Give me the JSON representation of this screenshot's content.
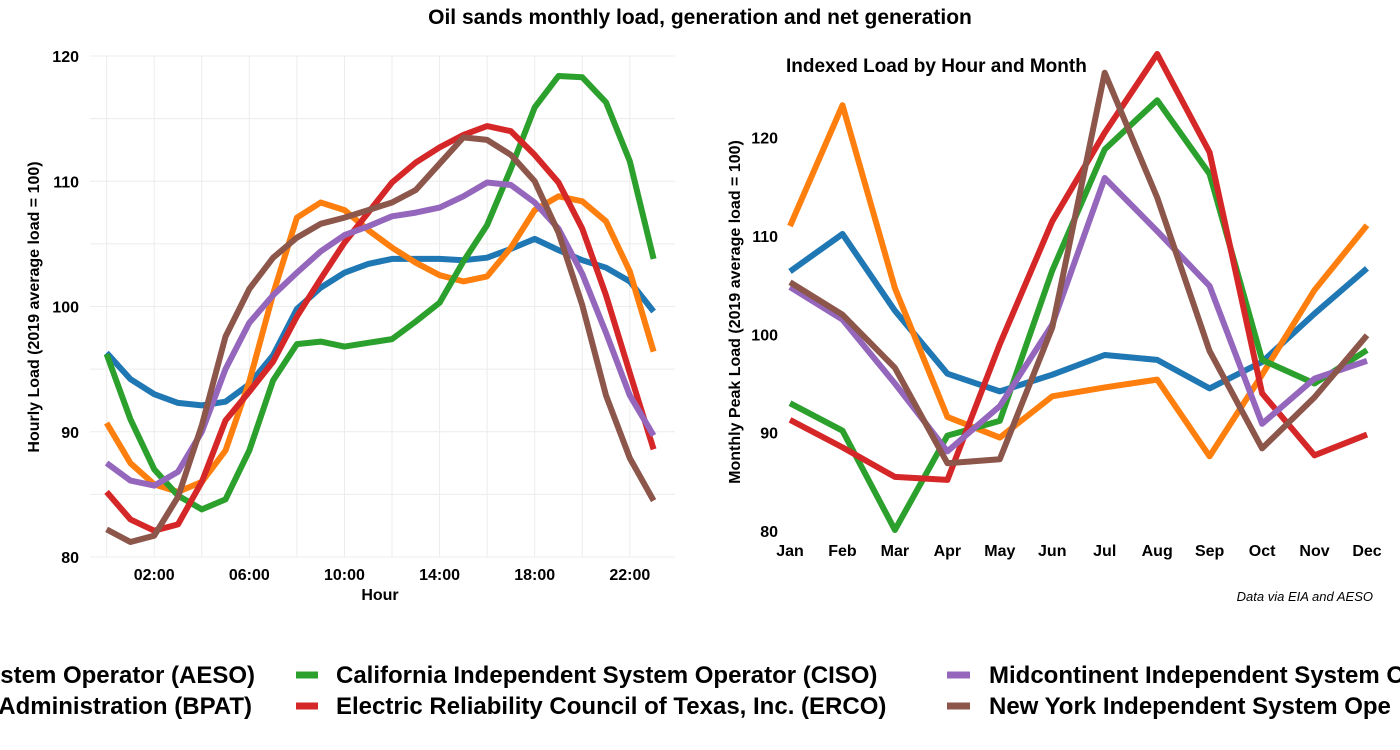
{
  "title": "Oil sands monthly load, generation and net generation",
  "caption": "Data via EIA and AESO",
  "chart_data": [
    {
      "type": "line",
      "title": "",
      "xlabel": "Hour",
      "ylabel": "Hourly Load (2019 average load = 100)",
      "xlim": [
        -0.7,
        23.9
      ],
      "ylim": [
        80,
        120
      ],
      "yticks": [
        80,
        90,
        100,
        110,
        120
      ],
      "xticks": [
        {
          "x": 2,
          "label": "02:00"
        },
        {
          "x": 6,
          "label": "06:00"
        },
        {
          "x": 10,
          "label": "10:00"
        },
        {
          "x": 14,
          "label": "14:00"
        },
        {
          "x": 18,
          "label": "18:00"
        },
        {
          "x": 22,
          "label": "22:00"
        }
      ],
      "grid": true,
      "x": [
        0,
        1,
        2,
        3,
        4,
        5,
        6,
        7,
        8,
        9,
        10,
        11,
        12,
        13,
        14,
        15,
        16,
        17,
        18,
        19,
        20,
        21,
        22,
        23
      ],
      "series": [
        {
          "key": "aeso",
          "color": "#1f77b4",
          "values": [
            96.3,
            94.2,
            93.0,
            92.3,
            92.1,
            92.4,
            93.8,
            96.1,
            99.8,
            101.5,
            102.7,
            103.4,
            103.8,
            103.8,
            103.8,
            103.7,
            103.9,
            104.6,
            105.4,
            104.5,
            103.7,
            103.1,
            102.0,
            99.6
          ]
        },
        {
          "key": "bpat",
          "color": "#ff7f0e",
          "values": [
            90.7,
            87.5,
            85.8,
            85.2,
            86.0,
            88.5,
            94.0,
            101.0,
            107.1,
            108.3,
            107.7,
            106.1,
            104.7,
            103.5,
            102.5,
            102.0,
            102.4,
            104.7,
            107.7,
            108.8,
            108.4,
            106.8,
            102.8,
            96.4
          ]
        },
        {
          "key": "ciso",
          "color": "#2ca02c",
          "values": [
            96.2,
            91.0,
            87.0,
            84.9,
            83.8,
            84.6,
            88.5,
            94.1,
            97.0,
            97.2,
            96.8,
            97.1,
            97.4,
            98.8,
            100.3,
            103.6,
            106.5,
            111.0,
            115.9,
            118.4,
            118.3,
            116.3,
            111.6,
            103.8
          ]
        },
        {
          "key": "erco",
          "color": "#d62728",
          "values": [
            85.2,
            83.0,
            82.1,
            82.6,
            86.0,
            90.9,
            93.2,
            95.6,
            99.2,
            102.2,
            105.1,
            107.5,
            109.9,
            111.5,
            112.7,
            113.7,
            114.4,
            114.0,
            112.1,
            109.9,
            106.2,
            100.9,
            94.7,
            88.6
          ]
        },
        {
          "key": "miso",
          "color": "#9467bd",
          "values": [
            87.5,
            86.1,
            85.7,
            86.8,
            90.0,
            95.0,
            98.7,
            100.9,
            102.7,
            104.4,
            105.7,
            106.4,
            107.2,
            107.5,
            107.9,
            108.8,
            109.9,
            109.7,
            108.3,
            106.2,
            102.6,
            97.9,
            92.9,
            89.7
          ]
        },
        {
          "key": "nyis",
          "color": "#8c564b",
          "values": [
            82.2,
            81.2,
            81.7,
            84.8,
            90.5,
            97.6,
            101.4,
            103.9,
            105.5,
            106.6,
            107.1,
            107.7,
            108.3,
            109.3,
            111.4,
            113.5,
            113.3,
            112.1,
            110.0,
            105.9,
            100.1,
            92.9,
            87.9,
            84.5
          ]
        }
      ]
    },
    {
      "type": "line",
      "title": "Indexed Load by Hour and Month",
      "xlabel": "",
      "ylabel": "Monthly Peak Load (2019 average load = 100)",
      "ylim": [
        79.8,
        128.3
      ],
      "yticks": [
        80,
        90,
        100,
        110,
        120
      ],
      "categories": [
        "Jan",
        "Feb",
        "Mar",
        "Apr",
        "May",
        "Jun",
        "Jul",
        "Aug",
        "Sep",
        "Oct",
        "Nov",
        "Dec"
      ],
      "grid": false,
      "series": [
        {
          "key": "aeso",
          "color": "#1f77b4",
          "values": [
            106.4,
            110.2,
            102.4,
            96.0,
            94.2,
            95.9,
            97.9,
            97.4,
            94.5,
            97.2,
            102.1,
            106.7
          ]
        },
        {
          "key": "bpat",
          "color": "#ff7f0e",
          "values": [
            111.0,
            123.3,
            104.7,
            91.6,
            89.5,
            93.7,
            94.6,
            95.4,
            87.6,
            95.9,
            104.5,
            111.1
          ]
        },
        {
          "key": "ciso",
          "color": "#2ca02c",
          "values": [
            93.0,
            90.2,
            80.1,
            89.7,
            91.2,
            106.5,
            118.8,
            123.8,
            116.3,
            97.4,
            95.0,
            98.4
          ]
        },
        {
          "key": "erco",
          "color": "#d62728",
          "values": [
            91.3,
            88.5,
            85.5,
            85.2,
            99.0,
            111.5,
            120.5,
            128.5,
            118.5,
            94.0,
            87.7,
            89.8
          ]
        },
        {
          "key": "miso",
          "color": "#9467bd",
          "values": [
            104.8,
            101.5,
            95.0,
            88.1,
            92.7,
            101.0,
            115.9,
            110.5,
            104.9,
            90.9,
            95.5,
            97.3
          ]
        },
        {
          "key": "nyis",
          "color": "#8c564b",
          "values": [
            105.3,
            102.0,
            96.6,
            86.9,
            87.3,
            100.7,
            126.6,
            113.9,
            98.3,
            88.4,
            93.6,
            99.9
          ]
        }
      ]
    }
  ],
  "legend": {
    "placement": "bottom",
    "items": [
      {
        "key": "aeso",
        "color": "#1f77b4",
        "label": "stem Operator (AESO)"
      },
      {
        "key": "bpat",
        "color": "#ff7f0e",
        "label": "Administration (BPAT)"
      },
      {
        "key": "ciso",
        "color": "#2ca02c",
        "label": "California Independent System Operator (CISO)"
      },
      {
        "key": "erco",
        "color": "#d62728",
        "label": "Electric Reliability Council of Texas, Inc. (ERCO)"
      },
      {
        "key": "miso",
        "color": "#9467bd",
        "label": "Midcontinent Independent System O"
      },
      {
        "key": "nyis",
        "color": "#8c564b",
        "label": "New York Independent System Ope"
      }
    ]
  }
}
